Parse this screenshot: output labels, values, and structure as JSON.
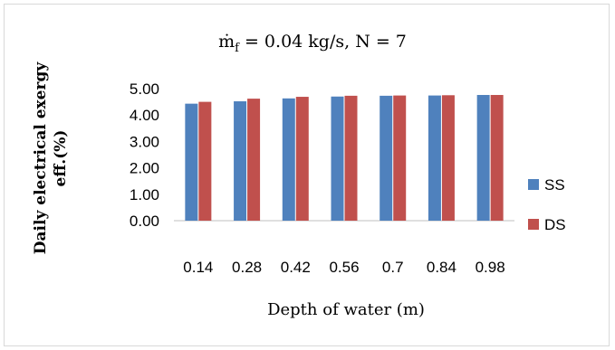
{
  "chart_data": {
    "type": "bar",
    "title_parts": {
      "m": "ṁ",
      "sub": "f",
      "rest": " = 0.04 kg/s, N = 7"
    },
    "xlabel": "Depth of water (m)",
    "ylabel_line1": "Daily electrical exergy",
    "ylabel_line2": "eff.(%)",
    "categories": [
      "0.14",
      "0.28",
      "0.42",
      "0.56",
      "0.7",
      "0.84",
      "0.98"
    ],
    "series": [
      {
        "name": "SS",
        "color": "#4f81bd",
        "values": [
          4.43,
          4.52,
          4.63,
          4.7,
          4.73,
          4.74,
          4.76
        ]
      },
      {
        "name": "DS",
        "color": "#c0504d",
        "values": [
          4.5,
          4.62,
          4.69,
          4.73,
          4.74,
          4.75,
          4.76
        ]
      }
    ],
    "ylim": [
      0,
      5
    ],
    "yticks": [
      "0.00",
      "1.00",
      "2.00",
      "3.00",
      "4.00",
      "5.00"
    ],
    "grid": false,
    "legend_position": "right"
  }
}
